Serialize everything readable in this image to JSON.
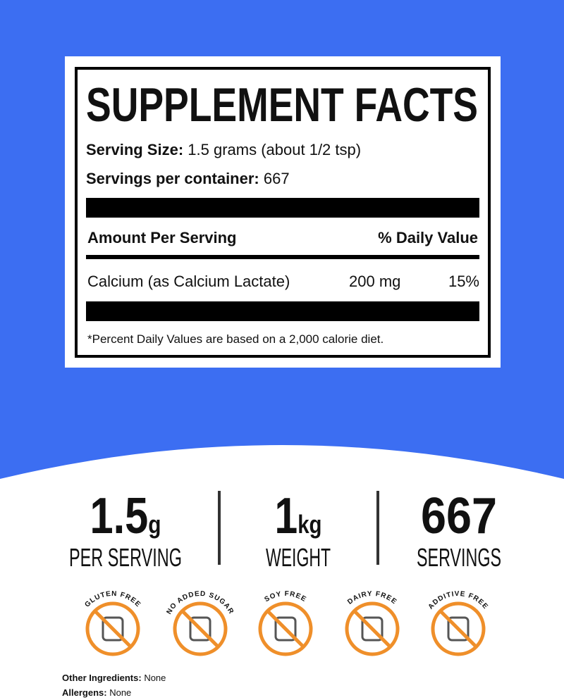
{
  "facts": {
    "title": "SUPPLEMENT FACTS",
    "serving_size_label": "Serving Size:",
    "serving_size": "1.5 grams (about 1/2 tsp)",
    "servings_label": "Servings per container:",
    "servings": "667",
    "amount_header": "Amount Per Serving",
    "dv_header": "% Daily Value",
    "rows": [
      [
        "Calcium (as Calcium Lactate)",
        "200 mg",
        "15%"
      ]
    ],
    "footnote": "*Percent Daily Values are based on a 2,000 calorie diet."
  },
  "stats": [
    {
      "value": "1.5",
      "unit": "g",
      "label": "PER SERVING"
    },
    {
      "value": "1",
      "unit": "kg",
      "label": "WEIGHT"
    },
    {
      "value": "667",
      "label": "SERVINGS"
    }
  ],
  "badges": [
    "GLUTEN FREE",
    "NO ADDED SUGAR",
    "SOY FREE",
    "DAIRY FREE",
    "ADDITIVE FREE"
  ],
  "footer": {
    "other_label": "Other Ingredients:",
    "other": "None",
    "allergens_label": "Allergens:",
    "allergens": "None"
  }
}
